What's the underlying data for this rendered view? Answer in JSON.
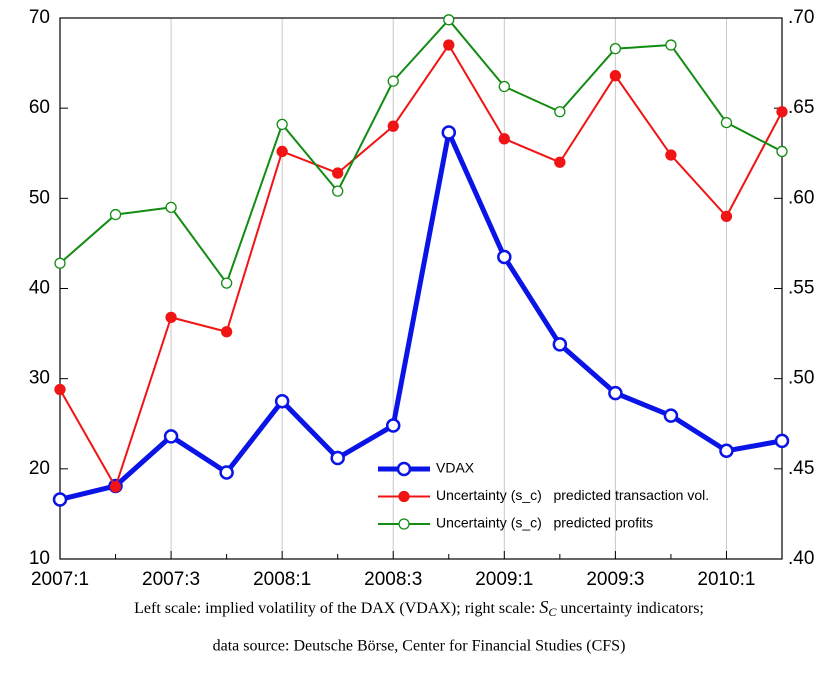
{
  "chart_data": {
    "type": "line",
    "categories": [
      "2007:1",
      null,
      "2007:3",
      null,
      "2008:1",
      null,
      "2008:3",
      null,
      "2009:1",
      null,
      "2009:3",
      null,
      "2010:1",
      null
    ],
    "ylim": [
      10,
      70
    ],
    "yticks": [
      10,
      20,
      30,
      40,
      50,
      60,
      70
    ],
    "y2lim": [
      0.4,
      0.7
    ],
    "y2ticks": [
      {
        "value": 0.4,
        "label": ".40"
      },
      {
        "value": 0.45,
        "label": ".45"
      },
      {
        "value": 0.5,
        "label": ".50"
      },
      {
        "value": 0.55,
        "label": ".55"
      },
      {
        "value": 0.6,
        "label": ".60"
      },
      {
        "value": 0.65,
        "label": ".65"
      },
      {
        "value": 0.7,
        "label": ".70"
      }
    ],
    "grid": true,
    "legend": "lower-center",
    "series": [
      {
        "name": "VDAX",
        "color": "#0a14e6",
        "line_width": 5,
        "marker": "open",
        "values": [
          16.6,
          18.1,
          23.6,
          19.6,
          27.5,
          21.2,
          24.8,
          57.3,
          43.5,
          33.8,
          28.4,
          25.9,
          22.0,
          23.1
        ]
      },
      {
        "name": "Uncertainty (s_c)   predicted transaction vol.",
        "color": "#f01414",
        "line_width": 2,
        "marker": "filled",
        "axis": "y2",
        "values": [
          0.494,
          0.44,
          0.534,
          0.526,
          0.626,
          0.614,
          0.64,
          0.685,
          0.633,
          0.62,
          0.668,
          0.624,
          0.59,
          0.648
        ]
      },
      {
        "name": "Uncertainty (s_c)   predicted profits",
        "color": "#128c12",
        "line_width": 2,
        "marker": "open",
        "axis": "y2",
        "values": [
          0.564,
          0.591,
          0.595,
          0.553,
          0.641,
          0.604,
          0.665,
          0.699,
          0.662,
          0.648,
          0.683,
          0.685,
          0.642,
          0.626
        ]
      }
    ],
    "notes": {
      "line1_before": "Left scale: implied volatility of the DAX (VDAX); right scale: ",
      "symbol": "S",
      "subscript": "C",
      "line1_after": " uncertainty indicators;",
      "line2": "data source: Deutsche Börse, Center for Financial Studies (CFS)"
    }
  }
}
